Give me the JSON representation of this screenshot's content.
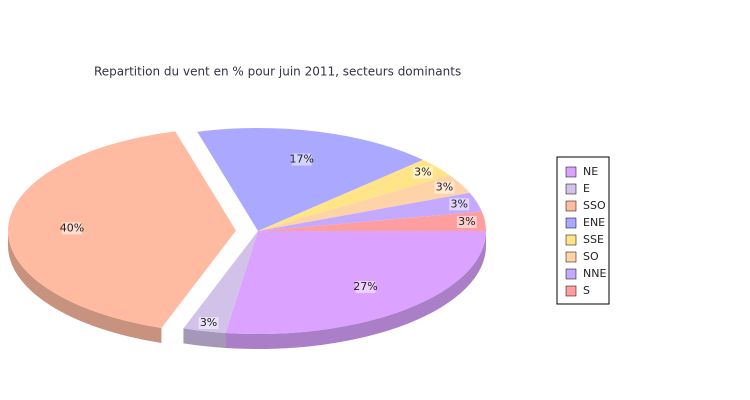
{
  "chart_data": {
    "type": "pie",
    "title": "Repartition du vent en % pour juin 2011, secteurs dominants",
    "categories": [
      "NE",
      "E",
      "SSO",
      "ENE",
      "SSE",
      "SO",
      "NNE",
      "S"
    ],
    "values": [
      27,
      3,
      40,
      17,
      3,
      3,
      3,
      3
    ],
    "value_labels": [
      "27%",
      "3%",
      "40%",
      "17%",
      "3%",
      "3%",
      "3%",
      "3%"
    ],
    "colors": [
      "#dba3ff",
      "#d2c2ea",
      "#ffbba2",
      "#aba9ff",
      "#ffe488",
      "#ffd3a8",
      "#c3a9ff",
      "#ff9e9e"
    ],
    "explode": "SSO",
    "legend": "right"
  }
}
